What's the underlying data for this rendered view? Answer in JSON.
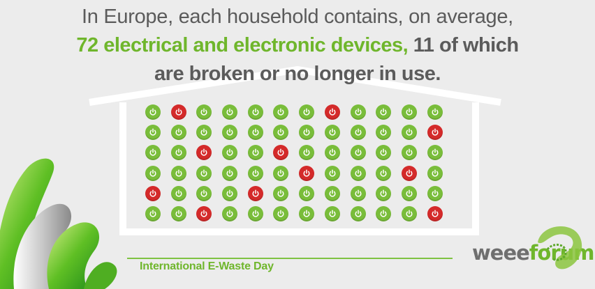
{
  "headline": {
    "line1": "In Europe, each household contains, on average,",
    "line2_accent": "72 electrical and electronic devices,",
    "line2_rest": " 11 of which",
    "line3": "are broken or no longer in use."
  },
  "devices": {
    "columns": 12,
    "rows": [
      [
        "ok",
        "broken",
        "ok",
        "ok",
        "ok",
        "ok",
        "ok",
        "broken",
        "ok",
        "ok",
        "ok",
        "ok"
      ],
      [
        "ok",
        "ok",
        "ok",
        "ok",
        "ok",
        "ok",
        "ok",
        "ok",
        "ok",
        "ok",
        "ok",
        "broken"
      ],
      [
        "ok",
        "ok",
        "broken",
        "ok",
        "ok",
        "broken",
        "ok",
        "ok",
        "ok",
        "ok",
        "ok",
        "ok"
      ],
      [
        "ok",
        "ok",
        "ok",
        "ok",
        "ok",
        "ok",
        "broken",
        "ok",
        "ok",
        "ok",
        "broken",
        "ok"
      ],
      [
        "broken",
        "ok",
        "ok",
        "ok",
        "broken",
        "ok",
        "ok",
        "ok",
        "ok",
        "ok",
        "ok",
        "ok"
      ],
      [
        "ok",
        "ok",
        "broken",
        "ok",
        "ok",
        "ok",
        "ok",
        "ok",
        "ok",
        "ok",
        "ok",
        "broken"
      ]
    ]
  },
  "footer": {
    "event": "International E-Waste Day"
  },
  "logo": {
    "part1": "weee",
    "part2": "forum"
  },
  "colors": {
    "ok": "#79bd3a",
    "broken": "#d42a2a",
    "accent": "#6fb62c",
    "text": "#5b5b5b"
  },
  "icons": {
    "device": "power-icon"
  }
}
